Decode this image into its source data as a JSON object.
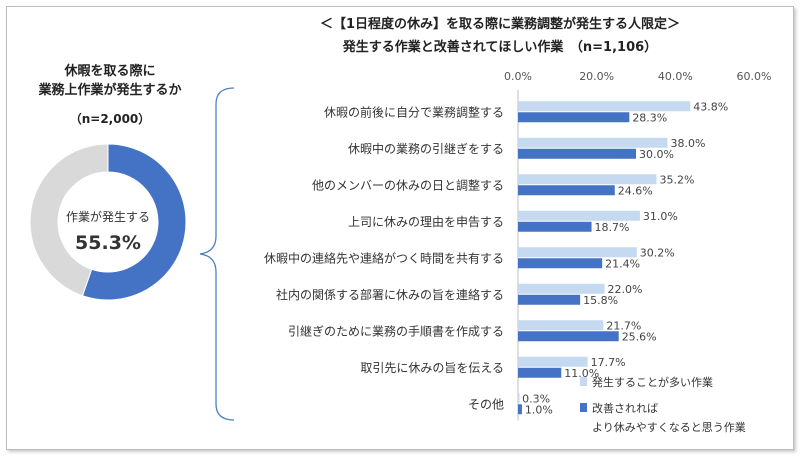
{
  "left": {
    "title_line1": "休暇を取る際に",
    "title_line2": "業務上作業が発生するか",
    "n_label": "（n=2,000）",
    "donut_label": "作業が発生する",
    "donut_value": "55.3%"
  },
  "main": {
    "title": "＜【1日程度の休み】を取る際に業務調整が発生する人限定＞",
    "subtitle": "発生する作業と改善されてほしい作業　（n=1,106）"
  },
  "colors": {
    "series1": "#c5d9f1",
    "series2": "#4472c4",
    "donut_rest": "#d9d9d9"
  },
  "chart_data": [
    {
      "type": "pie",
      "categories": [
        "作業が発生する",
        ""
      ],
      "values": [
        55.3,
        44.7
      ]
    },
    {
      "type": "bar",
      "orientation": "horizontal",
      "categories": [
        "休暇の前後に自分で業務調整する",
        "休暇中の業務の引継ぎをする",
        "他のメンバーの休みの日と調整する",
        "上司に休みの理由を申告する",
        "休暇中の連絡先や連絡がつく時間を共有する",
        "社内の関係する部署に休みの旨を連絡する",
        "引継ぎのために業務の手順書を作成する",
        "取引先に休みの旨を伝える",
        "その他"
      ],
      "series": [
        {
          "name": "発生することが多い作業",
          "values": [
            43.8,
            38.0,
            35.2,
            31.0,
            30.2,
            22.0,
            21.7,
            17.7,
            0.3
          ]
        },
        {
          "name": "改善されればより休みやすくなると思う作業",
          "values": [
            28.3,
            30.0,
            24.6,
            18.7,
            21.4,
            15.8,
            25.6,
            11.0,
            1.0
          ]
        }
      ],
      "value_labels": [
        [
          "43.8%",
          "38.0%",
          "35.2%",
          "31.0%",
          "30.2%",
          "22.0%",
          "21.7%",
          "17.7%",
          "0.3%"
        ],
        [
          "28.3%",
          "30.0%",
          "24.6%",
          "18.7%",
          "21.4%",
          "15.8%",
          "25.6%",
          "11.0%",
          "1.0%"
        ]
      ],
      "legend": [
        "発生することが多い作業",
        "改善されれば",
        "より休みやすくなると思う作業"
      ],
      "xlim": [
        0,
        60
      ],
      "xticks": [
        "0.0%",
        "20.0%",
        "40.0%",
        "60.0%"
      ],
      "legend_position": "bottom-right"
    }
  ]
}
